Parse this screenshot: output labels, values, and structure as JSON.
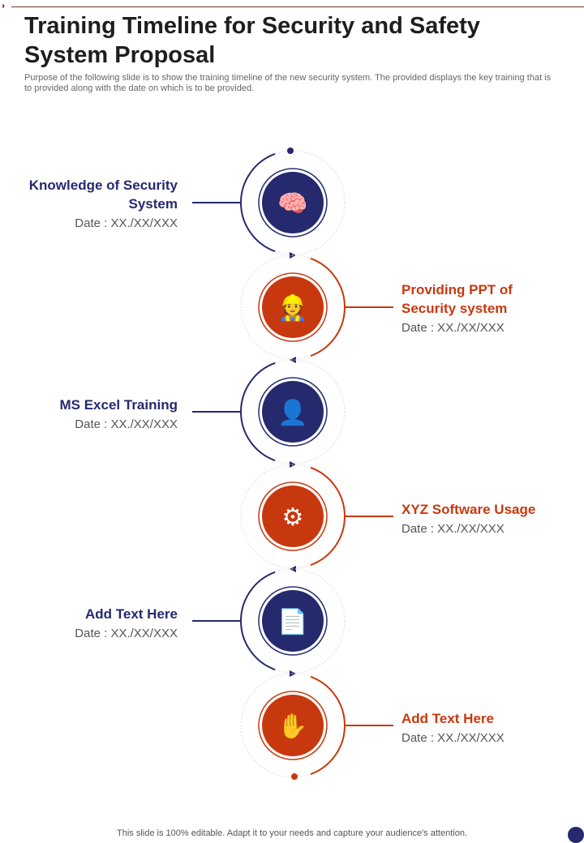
{
  "title": "Training Timeline for Security and Safety System Proposal",
  "description": "Purpose of the following slide is to show the training timeline of the new security system. The provided displays the key training that is to provided along with the date on which is to  be provided.",
  "colors": {
    "blue": "#252a6e",
    "orange": "#c8380e"
  },
  "items": [
    {
      "title": "Knowledge of Security System",
      "date": "Date : XX./XX/XXX",
      "side": "left",
      "icon": "head-puzzle-icon"
    },
    {
      "title": "Providing PPT of Security system",
      "date": "Date : XX./XX/XXX",
      "side": "right",
      "icon": "worker-puzzle-icon"
    },
    {
      "title": "MS Excel Training",
      "date": "Date : XX./XX/XXX",
      "side": "left",
      "icon": "video-presentation-icon"
    },
    {
      "title": "XYZ Software Usage",
      "date": "Date : XX./XX/XXX",
      "side": "right",
      "icon": "monitor-code-gear-icon"
    },
    {
      "title": "Add Text Here",
      "date": "Date : XX./XX/XXX",
      "side": "left",
      "icon": "document-checklist-icon"
    },
    {
      "title": "Add Text Here",
      "date": "Date : XX./XX/XXX",
      "side": "right",
      "icon": "hand-person-gear-icon"
    }
  ],
  "footer": "This slide is 100% editable. Adapt it to your needs and capture your audience's attention."
}
